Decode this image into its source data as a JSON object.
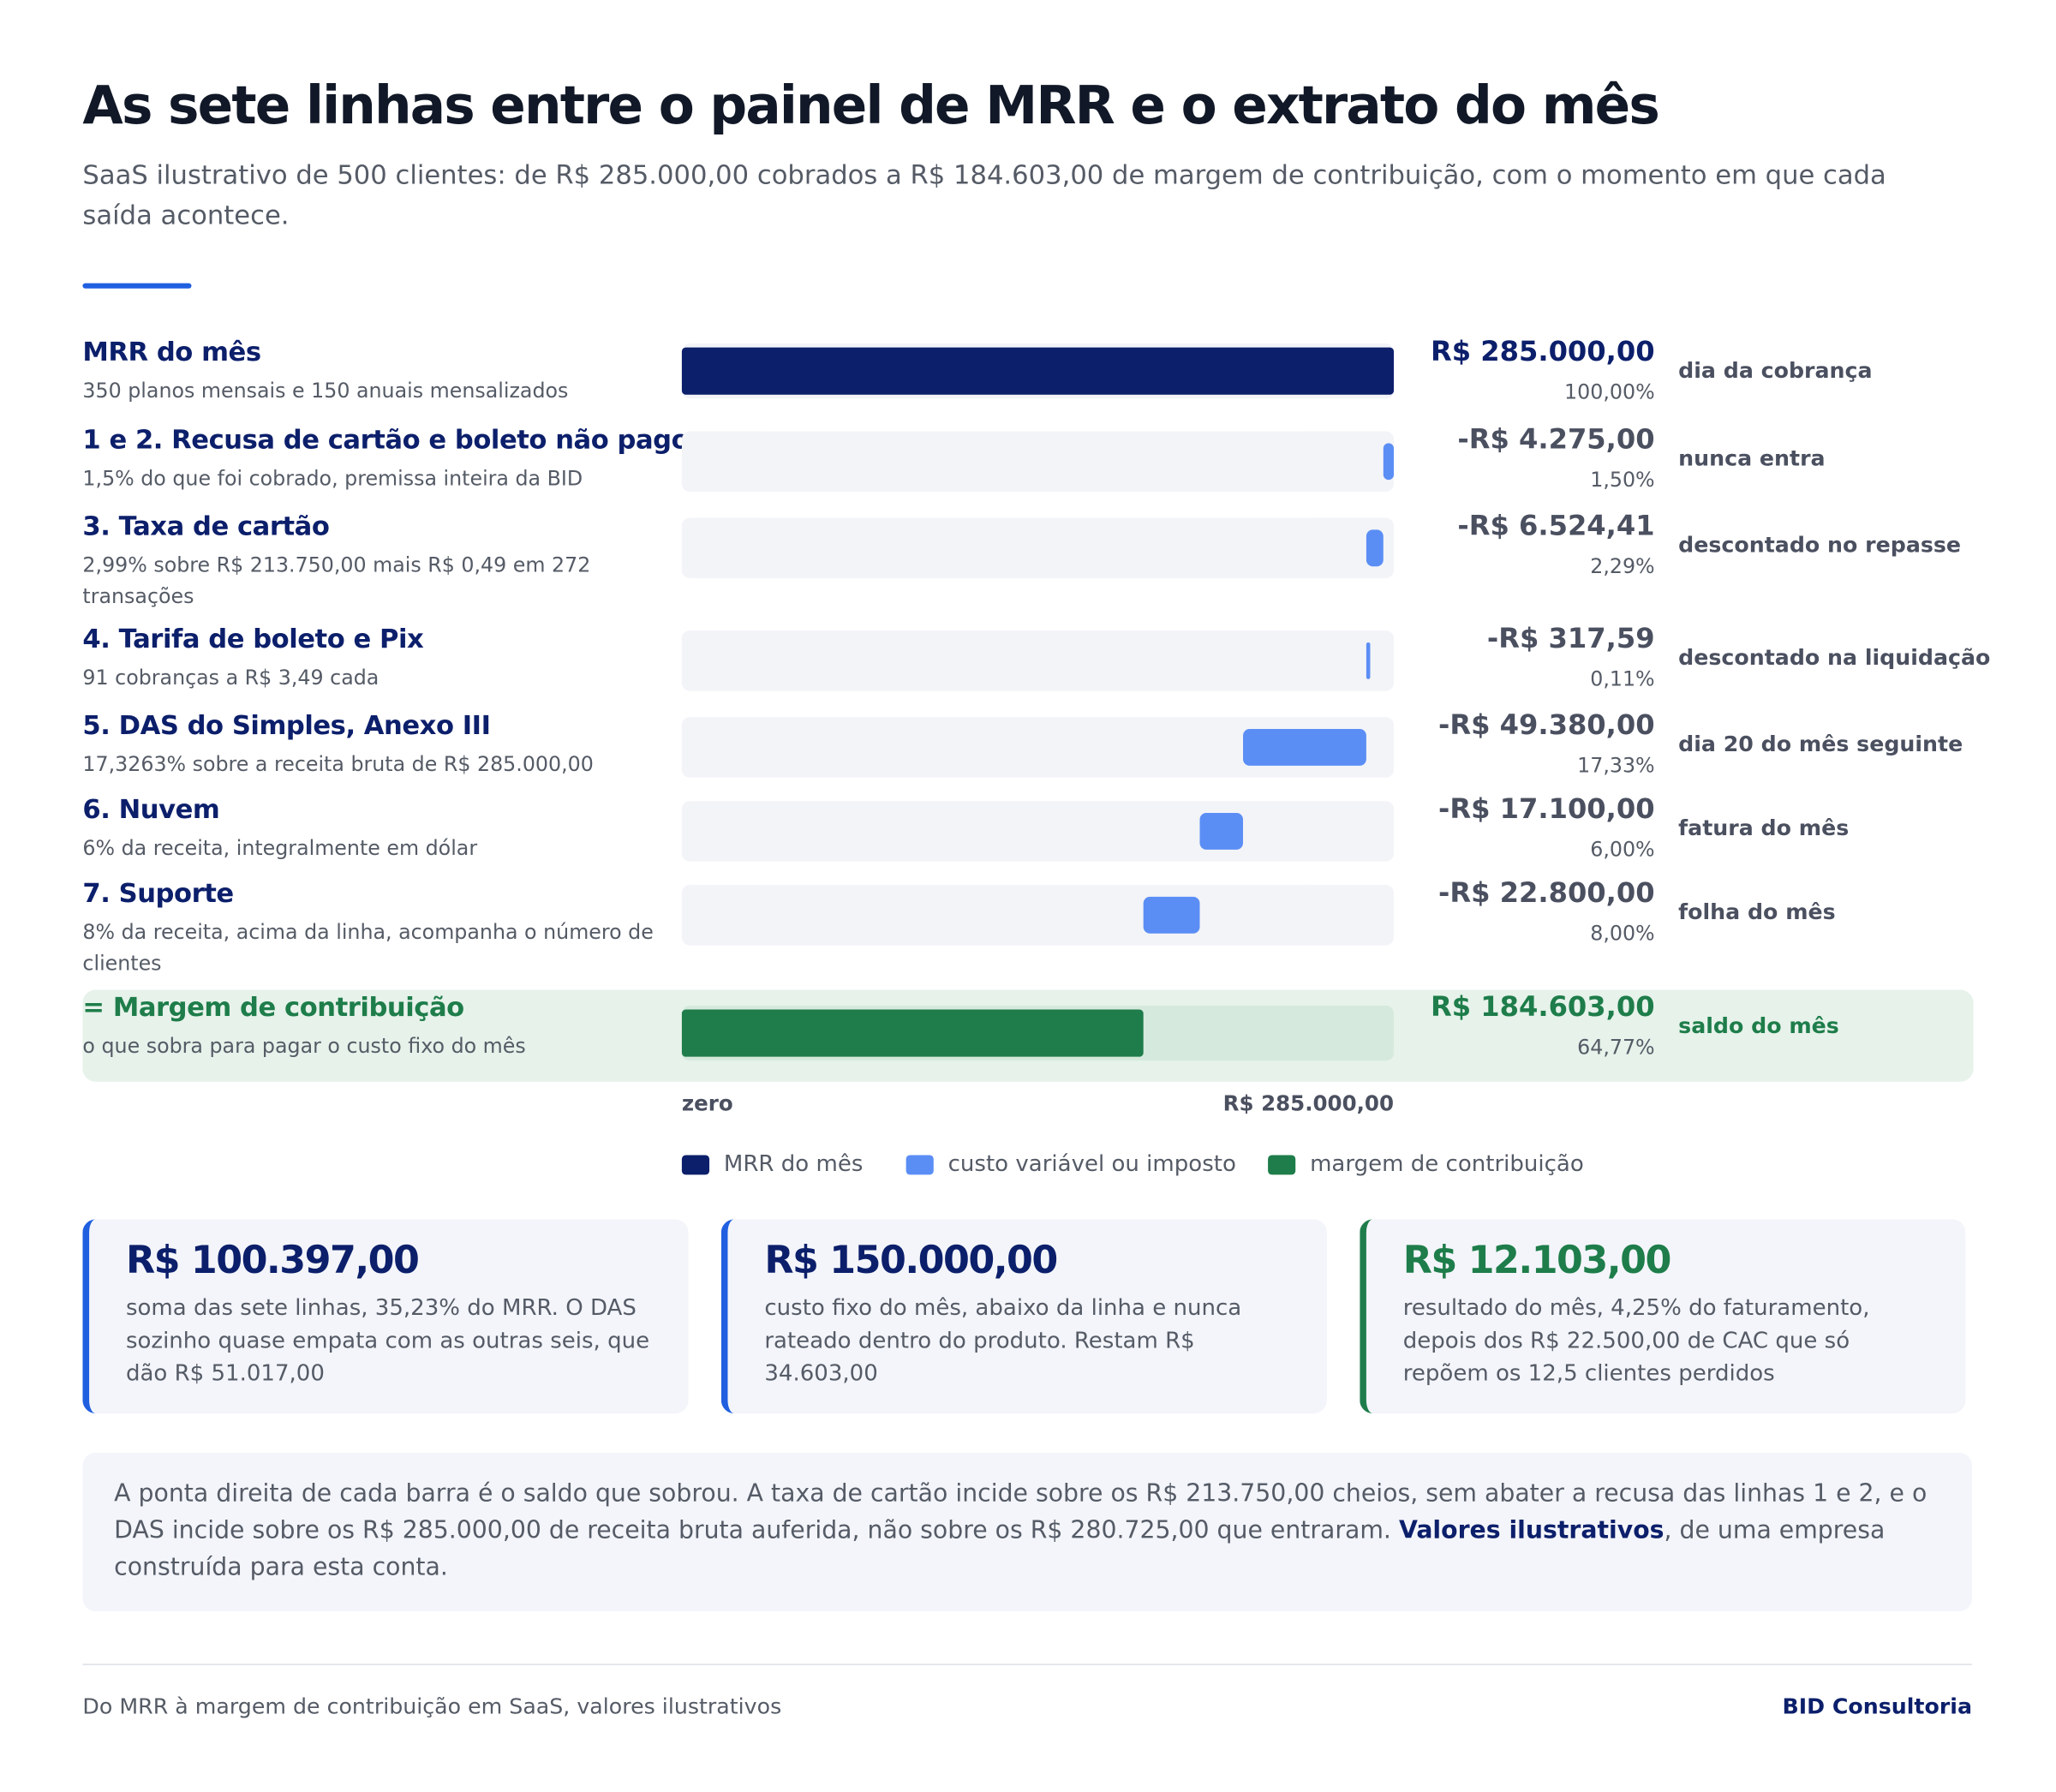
{
  "chart_data": {
    "type": "waterfall",
    "title": "As sete linhas entre o painel de MRR e o extrato do mês",
    "subtitle": "SaaS ilustrativo de 500 clientes: de R$ 285.000,00 cobrados a R$ 184.603,00 de margem de contribuição, com o momento em que cada saída acontece.",
    "categories": [
      "MRR do mês",
      "1 e 2. Recusa de cartão e boleto não pago",
      "3. Taxa de cartão",
      "4. Tarifa de boleto e Pix",
      "5. DAS do Simples, Anexo III",
      "6. Nuvem",
      "7. Suporte",
      "= Margem de contribuição"
    ],
    "descriptions": [
      "350 planos mensais e 150 anuais mensalizados",
      "1,5% do que foi cobrado, premissa inteira da BID",
      "2,99% sobre R$ 213.750,00 mais R$ 0,49 em 272 transações",
      "91 cobranças a R$ 3,49 cada",
      "17,3263% sobre a receita bruta de R$ 285.000,00",
      "6% da receita, integralmente em dólar",
      "8% da receita, acima da linha, acompanha o número de clientes",
      "o que sobra para pagar o custo fixo do mês"
    ],
    "kinds": [
      "total",
      "cost",
      "cost",
      "cost",
      "cost",
      "cost",
      "cost",
      "total"
    ],
    "values": [
      285000,
      -4275,
      -6524.41,
      -317.59,
      -49380,
      -17100,
      -22800,
      184603
    ],
    "value_labels": [
      "R$ 285.000,00",
      "-R$ 4.275,00",
      "-R$ 6.524,41",
      "-R$ 317,59",
      "-R$ 49.380,00",
      "-R$ 17.100,00",
      "-R$ 22.800,00",
      "R$ 184.603,00"
    ],
    "shares": [
      100,
      1.5,
      2.29,
      0.11,
      17.33,
      6,
      8,
      64.77
    ],
    "share_labels": [
      "100,00%",
      "1,50%",
      "2,29%",
      "0,11%",
      "17,33%",
      "6,00%",
      "8,00%",
      "64,77%"
    ],
    "timing": [
      "dia da cobrança",
      "nunca entra",
      "descontado no repasse",
      "descontado na liquidação",
      "dia 20 do mês seguinte",
      "fatura do mês",
      "folha do mês",
      "saldo do mês"
    ],
    "colors": [
      "#0c1f6b",
      "#5b8ef5",
      "#5b8ef5",
      "#5b8ef5",
      "#5b8ef5",
      "#5b8ef5",
      "#5b8ef5",
      "#1e7d4a"
    ],
    "xlim": [
      0,
      285000
    ],
    "xticks": [
      {
        "value": 0,
        "label": "zero"
      },
      {
        "value": 285000,
        "label": "R$ 285.000,00"
      }
    ],
    "legend": [
      {
        "name": "MRR do mês",
        "color": "#0c1f6b"
      },
      {
        "name": "custo variável ou imposto",
        "color": "#5b8ef5"
      },
      {
        "name": "margem de contribuição",
        "color": "#1e7d4a"
      }
    ]
  },
  "cards": [
    {
      "value": "R$ 100.397,00",
      "text": "soma das sete linhas, 35,23% do MRR. O DAS sozinho quase empata com as outras seis, que dão R$ 51.017,00",
      "color": "#1f5fe0",
      "text_color": "#0c1f6b"
    },
    {
      "value": "R$ 150.000,00",
      "text": "custo fixo do mês, abaixo da linha e nunca rateado dentro do produto. Restam R$ 34.603,00",
      "color": "#1f5fe0",
      "text_color": "#0c1f6b"
    },
    {
      "value": "R$ 12.103,00",
      "text": "resultado do mês, 4,25% do faturamento, depois dos R$ 22.500,00 de CAC que só repõem os 12,5 clientes perdidos",
      "color": "#1e7d4a",
      "text_color": "#1e7d4a"
    }
  ],
  "note": {
    "before": "A ponta direita de cada barra é o saldo que sobrou. A taxa de cartão incide sobre os R$ 213.750,00 cheios, sem abater a recusa das linhas 1 e 2, e o DAS incide sobre os R$ 285.000,00 de receita bruta auferida, não sobre os R$ 280.725,00 que entraram.",
    "bold": "Valores ilustrativos",
    "after": ", de uma empresa construída para esta conta."
  },
  "footer": {
    "left": "Do MRR à margem de contribuição em SaaS, valores ilustrativos",
    "right": "BID Consultoria"
  }
}
